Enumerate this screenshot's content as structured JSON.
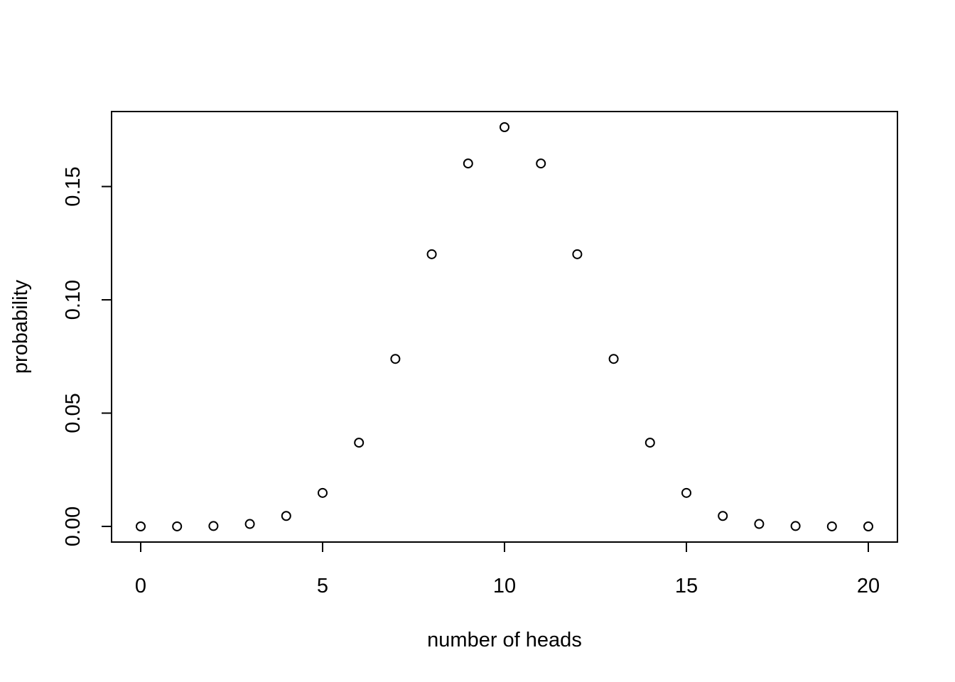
{
  "chart_data": {
    "type": "scatter",
    "title": "",
    "xlabel": "number of heads",
    "ylabel": "probability",
    "xlim": [
      0,
      20
    ],
    "ylim": [
      0,
      0.1762
    ],
    "x_ticks": [
      0,
      5,
      10,
      15,
      20
    ],
    "x_tick_labels": [
      "0",
      "5",
      "10",
      "15",
      "20"
    ],
    "y_ticks": [
      0,
      0.05,
      0.1,
      0.15
    ],
    "y_tick_labels": [
      "0.00",
      "0.05",
      "0.10",
      "0.15"
    ],
    "grid": false,
    "legend": "none",
    "x": [
      0,
      1,
      2,
      3,
      4,
      5,
      6,
      7,
      8,
      9,
      10,
      11,
      12,
      13,
      14,
      15,
      16,
      17,
      18,
      19,
      20
    ],
    "y": [
      1e-06,
      1.9e-05,
      0.000181,
      0.001087,
      0.004621,
      0.014786,
      0.036964,
      0.073929,
      0.120134,
      0.160179,
      0.176197,
      0.160179,
      0.120134,
      0.073929,
      0.036964,
      0.014786,
      0.004621,
      0.001087,
      0.000181,
      1.9e-05,
      1e-06
    ]
  }
}
